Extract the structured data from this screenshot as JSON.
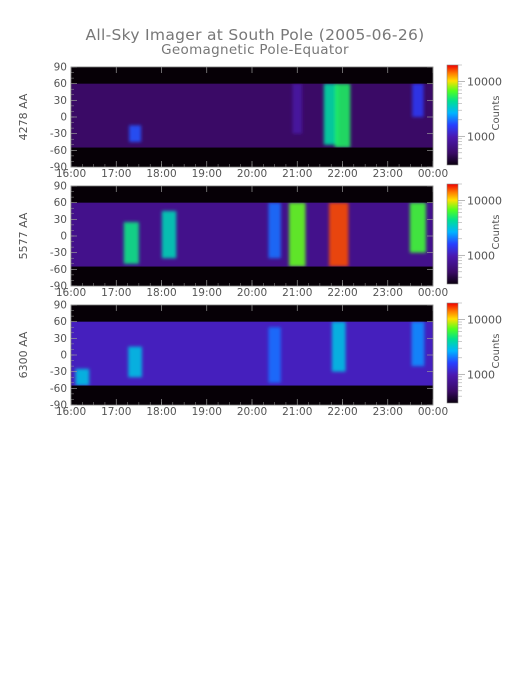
{
  "title": "All-Sky Imager at South Pole (2005-06-26)",
  "subtitle": "Geomagnetic Pole-Equator",
  "chart_data": [
    {
      "type": "heatmap",
      "ylabel": "4278 AA",
      "x_ticks": [
        "16:00",
        "17:00",
        "18:00",
        "19:00",
        "20:00",
        "21:00",
        "22:00",
        "23:00",
        "00:00"
      ],
      "y_ticks": [
        90,
        60,
        30,
        0,
        -30,
        -60,
        -90
      ],
      "ylim": [
        -90,
        90
      ],
      "xlim": [
        "16:00",
        "00:00"
      ],
      "valid_lat_range": [
        -55,
        60
      ],
      "colorbar": {
        "label": "Counts",
        "scale": "log",
        "ticks": [
          1000,
          10000
        ],
        "range": [
          300,
          20000
        ]
      },
      "features": [
        {
          "time": "16:00",
          "lat_min": -55,
          "lat_max": 60,
          "level": 0.12
        },
        {
          "time": "17:25",
          "lat_min": -45,
          "lat_max": -15,
          "level": 0.42
        },
        {
          "time": "21:00",
          "lat_min": -30,
          "lat_max": 60,
          "level": 0.25
        },
        {
          "time": "21:45",
          "lat_min": -50,
          "lat_max": 60,
          "level": 0.62
        },
        {
          "time": "22:00",
          "lat_min": -55,
          "lat_max": 60,
          "level": 0.68
        },
        {
          "time": "23:40",
          "lat_min": 0,
          "lat_max": 60,
          "level": 0.38
        }
      ]
    },
    {
      "type": "heatmap",
      "ylabel": "5577 AA",
      "x_ticks": [
        "16:00",
        "17:00",
        "18:00",
        "19:00",
        "20:00",
        "21:00",
        "22:00",
        "23:00",
        "00:00"
      ],
      "y_ticks": [
        90,
        60,
        30,
        0,
        -30,
        -60,
        -90
      ],
      "ylim": [
        -90,
        90
      ],
      "xlim": [
        "16:00",
        "00:00"
      ],
      "valid_lat_range": [
        -55,
        60
      ],
      "colorbar": {
        "label": "Counts",
        "scale": "log",
        "ticks": [
          1000,
          10000
        ],
        "range": [
          300,
          20000
        ]
      },
      "features": [
        {
          "time": "16:00",
          "lat_min": -55,
          "lat_max": 60,
          "level": 0.2
        },
        {
          "time": "17:20",
          "lat_min": -50,
          "lat_max": 25,
          "level": 0.65
        },
        {
          "time": "18:10",
          "lat_min": -40,
          "lat_max": 45,
          "level": 0.6
        },
        {
          "time": "20:30",
          "lat_min": -40,
          "lat_max": 60,
          "level": 0.45
        },
        {
          "time": "21:00",
          "lat_min": -55,
          "lat_max": 60,
          "level": 0.75
        },
        {
          "time": "21:55",
          "lat_min": -55,
          "lat_max": 60,
          "level": 0.95
        },
        {
          "time": "23:40",
          "lat_min": -30,
          "lat_max": 60,
          "level": 0.72
        }
      ]
    },
    {
      "type": "heatmap",
      "ylabel": "6300 AA",
      "x_ticks": [
        "16:00",
        "17:00",
        "18:00",
        "19:00",
        "20:00",
        "21:00",
        "22:00",
        "23:00",
        "00:00"
      ],
      "y_ticks": [
        90,
        60,
        30,
        0,
        -30,
        -60,
        -90
      ],
      "ylim": [
        -90,
        90
      ],
      "xlim": [
        "16:00",
        "00:00"
      ],
      "valid_lat_range": [
        -55,
        60
      ],
      "colorbar": {
        "label": "Counts",
        "scale": "log",
        "ticks": [
          1000,
          10000
        ],
        "range": [
          300,
          20000
        ]
      },
      "features": [
        {
          "time": "16:00",
          "lat_min": -55,
          "lat_max": 60,
          "level": 0.3
        },
        {
          "time": "16:15",
          "lat_min": -55,
          "lat_max": -25,
          "level": 0.55
        },
        {
          "time": "17:25",
          "lat_min": -40,
          "lat_max": 15,
          "level": 0.55
        },
        {
          "time": "20:30",
          "lat_min": -50,
          "lat_max": 50,
          "level": 0.45
        },
        {
          "time": "21:55",
          "lat_min": -30,
          "lat_max": 60,
          "level": 0.55
        },
        {
          "time": "23:40",
          "lat_min": -20,
          "lat_max": 60,
          "level": 0.48
        }
      ]
    }
  ]
}
